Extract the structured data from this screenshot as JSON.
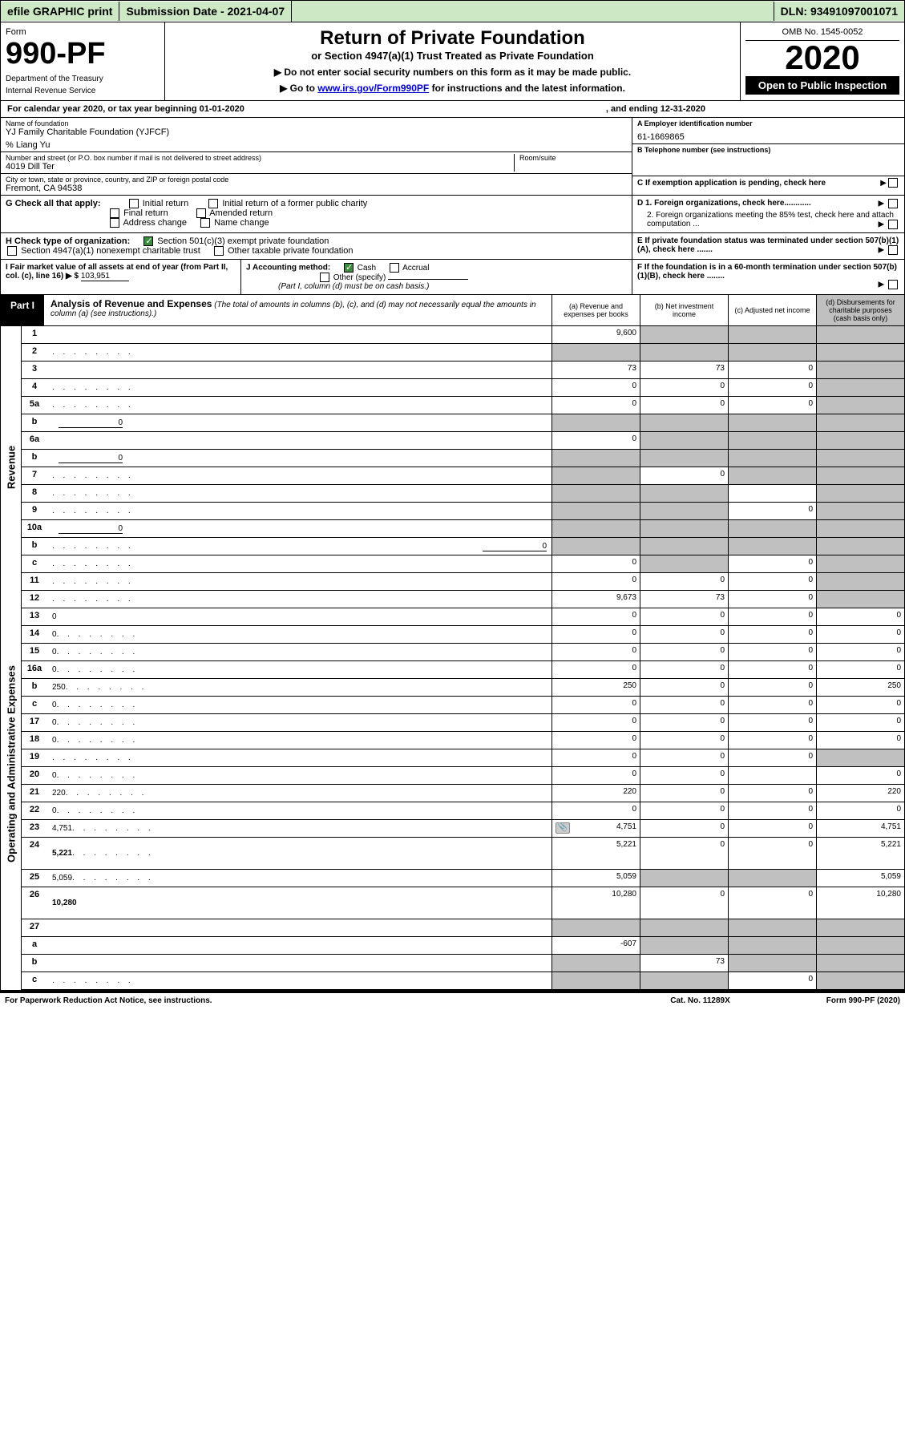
{
  "topbar": {
    "efile": "efile GRAPHIC print",
    "subdate_label": "Submission Date - ",
    "subdate": "2021-04-07",
    "dln_label": "DLN: ",
    "dln": "93491097001071"
  },
  "header": {
    "form_label": "Form",
    "form_no": "990-PF",
    "dept1": "Department of the Treasury",
    "dept2": "Internal Revenue Service",
    "title": "Return of Private Foundation",
    "subtitle1": "or Section 4947(a)(1) Trust Treated as Private Foundation",
    "subtitle2a": "▶ Do not enter social security numbers on this form as it may be made public.",
    "subtitle2b": "▶ Go to ",
    "link": "www.irs.gov/Form990PF",
    "subtitle2c": " for instructions and the latest information.",
    "omb": "OMB No. 1545-0052",
    "year": "2020",
    "open": "Open to Public Inspection"
  },
  "calyear": {
    "left": "For calendar year 2020, or tax year beginning 01-01-2020",
    "right": ", and ending 12-31-2020"
  },
  "info": {
    "name_label": "Name of foundation",
    "name": "YJ Family Charitable Foundation (YJFCF)",
    "co": "% Liang Yu",
    "street_label": "Number and street (or P.O. box number if mail is not delivered to street address)",
    "street": "4019 Dill Ter",
    "room_label": "Room/suite",
    "room": "",
    "city_label": "City or town, state or province, country, and ZIP or foreign postal code",
    "city": "Fremont, CA  94538",
    "a_label": "A Employer identification number",
    "a_val": "61-1669865",
    "b_label": "B Telephone number (see instructions)",
    "b_val": "",
    "c_label": "C If exemption application is pending, check here",
    "d1": "D 1. Foreign organizations, check here............",
    "d2": "2. Foreign organizations meeting the 85% test, check here and attach computation ...",
    "e": "E   If private foundation status was terminated under section 507(b)(1)(A), check here .......",
    "f": "F   If the foundation is in a 60-month termination under section 507(b)(1)(B), check here ........"
  },
  "g": {
    "label": "G Check all that apply:",
    "initial": "Initial return",
    "initial_former": "Initial return of a former public charity",
    "final": "Final return",
    "amended": "Amended return",
    "addr": "Address change",
    "namechg": "Name change"
  },
  "h": {
    "label": "H Check type of organization:",
    "s501": "Section 501(c)(3) exempt private foundation",
    "s4947": "Section 4947(a)(1) nonexempt charitable trust",
    "other": "Other taxable private foundation"
  },
  "i": {
    "label": "I Fair market value of all assets at end of year (from Part II, col. (c), line 16) ▶ $",
    "val": "103,951"
  },
  "j": {
    "label": "J Accounting method:",
    "cash": "Cash",
    "accrual": "Accrual",
    "other": "Other (specify)",
    "note": "(Part I, column (d) must be on cash basis.)"
  },
  "part1": {
    "label": "Part I",
    "title": "Analysis of Revenue and Expenses",
    "note": "(The total of amounts in columns (b), (c), and (d) may not necessarily equal the amounts in column (a) (see instructions).)",
    "col_a": "(a)   Revenue and expenses per books",
    "col_b": "(b)  Net investment income",
    "col_c": "(c)  Adjusted net income",
    "col_d": "(d)  Disbursements for charitable purposes (cash basis only)"
  },
  "sections": {
    "revenue": "Revenue",
    "expenses": "Operating and Administrative Expenses"
  },
  "rows": [
    {
      "n": "1",
      "d": "",
      "a": "9,600",
      "b": "",
      "c": "",
      "cg": [
        false,
        true,
        true,
        true
      ]
    },
    {
      "n": "2",
      "d": "",
      "dots": true,
      "a": "",
      "b": "",
      "c": "",
      "cg": [
        true,
        true,
        true,
        true
      ]
    },
    {
      "n": "3",
      "d": "",
      "a": "73",
      "b": "73",
      "c": "0",
      "cg": [
        false,
        false,
        false,
        true
      ]
    },
    {
      "n": "4",
      "d": "",
      "dots": true,
      "a": "0",
      "b": "0",
      "c": "0",
      "cg": [
        false,
        false,
        false,
        true
      ]
    },
    {
      "n": "5a",
      "d": "",
      "dots": true,
      "a": "0",
      "b": "0",
      "c": "0",
      "cg": [
        false,
        false,
        false,
        true
      ]
    },
    {
      "n": "b",
      "d": "",
      "inline": "0",
      "a": "",
      "b": "",
      "c": "",
      "cg": [
        true,
        true,
        true,
        true
      ]
    },
    {
      "n": "6a",
      "d": "",
      "a": "0",
      "b": "",
      "c": "",
      "cg": [
        false,
        true,
        true,
        true
      ]
    },
    {
      "n": "b",
      "d": "",
      "inline": "0",
      "a": "",
      "b": "",
      "c": "",
      "cg": [
        true,
        true,
        true,
        true
      ]
    },
    {
      "n": "7",
      "d": "",
      "dots": true,
      "a": "",
      "b": "0",
      "c": "",
      "cg": [
        true,
        false,
        true,
        true
      ]
    },
    {
      "n": "8",
      "d": "",
      "dots": true,
      "a": "",
      "b": "",
      "c": "",
      "cg": [
        true,
        true,
        false,
        true
      ]
    },
    {
      "n": "9",
      "d": "",
      "dots": true,
      "a": "",
      "b": "",
      "c": "0",
      "cg": [
        true,
        true,
        false,
        true
      ]
    },
    {
      "n": "10a",
      "d": "",
      "inline": "0",
      "a": "",
      "b": "",
      "c": "",
      "cg": [
        true,
        true,
        true,
        true
      ]
    },
    {
      "n": "b",
      "d": "",
      "dots": true,
      "inline": "0",
      "a": "",
      "b": "",
      "c": "",
      "cg": [
        true,
        true,
        true,
        true
      ]
    },
    {
      "n": "c",
      "d": "",
      "dots": true,
      "a": "0",
      "b": "",
      "c": "0",
      "cg": [
        false,
        true,
        false,
        true
      ]
    },
    {
      "n": "11",
      "d": "",
      "dots": true,
      "a": "0",
      "b": "0",
      "c": "0",
      "cg": [
        false,
        false,
        false,
        true
      ]
    },
    {
      "n": "12",
      "d": "",
      "dots": true,
      "bold": true,
      "a": "9,673",
      "b": "73",
      "c": "0",
      "cg": [
        false,
        false,
        false,
        true
      ]
    }
  ],
  "exp_rows": [
    {
      "n": "13",
      "d": "0",
      "a": "0",
      "b": "0",
      "c": "0"
    },
    {
      "n": "14",
      "d": "0",
      "dots": true,
      "a": "0",
      "b": "0",
      "c": "0"
    },
    {
      "n": "15",
      "d": "0",
      "dots": true,
      "a": "0",
      "b": "0",
      "c": "0"
    },
    {
      "n": "16a",
      "d": "0",
      "dots": true,
      "a": "0",
      "b": "0",
      "c": "0"
    },
    {
      "n": "b",
      "d": "250",
      "dots": true,
      "a": "250",
      "b": "0",
      "c": "0"
    },
    {
      "n": "c",
      "d": "0",
      "dots": true,
      "a": "0",
      "b": "0",
      "c": "0"
    },
    {
      "n": "17",
      "d": "0",
      "dots": true,
      "a": "0",
      "b": "0",
      "c": "0"
    },
    {
      "n": "18",
      "d": "0",
      "dots": true,
      "a": "0",
      "b": "0",
      "c": "0"
    },
    {
      "n": "19",
      "d": "",
      "dots": true,
      "a": "0",
      "b": "0",
      "c": "0",
      "cg": [
        false,
        false,
        false,
        true
      ]
    },
    {
      "n": "20",
      "d": "0",
      "dots": true,
      "a": "0",
      "b": "0",
      "c": ""
    },
    {
      "n": "21",
      "d": "220",
      "dots": true,
      "a": "220",
      "b": "0",
      "c": "0"
    },
    {
      "n": "22",
      "d": "0",
      "dots": true,
      "a": "0",
      "b": "0",
      "c": "0"
    },
    {
      "n": "23",
      "d": "4,751",
      "dots": true,
      "icon": true,
      "a": "4,751",
      "b": "0",
      "c": "0"
    },
    {
      "n": "24",
      "d": "5,221",
      "dots": true,
      "bold": true,
      "a": "5,221",
      "b": "0",
      "c": "0",
      "tall": true
    },
    {
      "n": "25",
      "d": "5,059",
      "dots": true,
      "a": "5,059",
      "b": "",
      "c": "",
      "cg": [
        false,
        true,
        true,
        false
      ]
    },
    {
      "n": "26",
      "d": "10,280",
      "bold": true,
      "a": "10,280",
      "b": "0",
      "c": "0",
      "tall": true
    }
  ],
  "sub_rows": [
    {
      "n": "27",
      "d": "",
      "a": "",
      "b": "",
      "c": "",
      "cg": [
        true,
        true,
        true,
        true
      ]
    },
    {
      "n": "a",
      "d": "",
      "bold": true,
      "a": "-607",
      "b": "",
      "c": "",
      "cg": [
        false,
        true,
        true,
        true
      ]
    },
    {
      "n": "b",
      "d": "",
      "bold": true,
      "a": "",
      "b": "73",
      "c": "",
      "cg": [
        true,
        false,
        true,
        true
      ]
    },
    {
      "n": "c",
      "d": "",
      "dots": true,
      "bold": true,
      "a": "",
      "b": "",
      "c": "0",
      "cg": [
        true,
        true,
        false,
        true
      ]
    }
  ],
  "footer": {
    "left": "For Paperwork Reduction Act Notice, see instructions.",
    "mid": "Cat. No. 11289X",
    "right": "Form 990-PF (2020)"
  }
}
